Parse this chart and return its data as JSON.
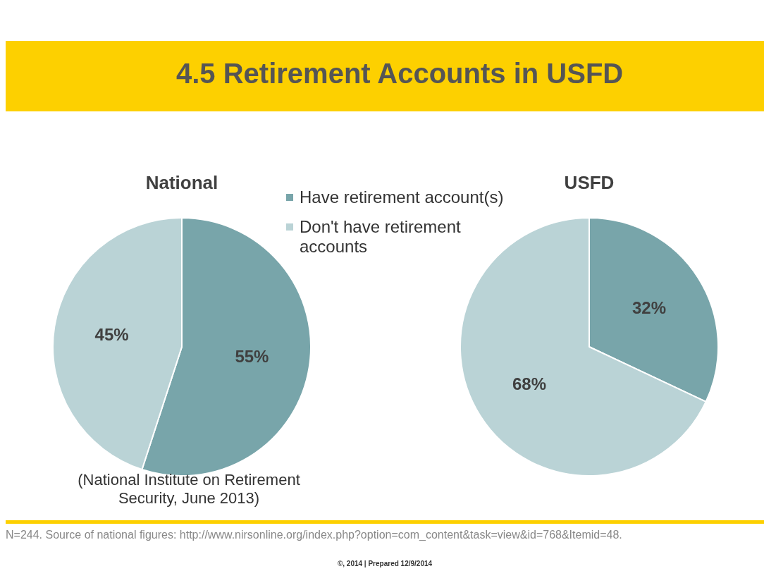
{
  "chart_data": [
    {
      "type": "pie",
      "title": "National",
      "categories": [
        "Have retirement account(s)",
        "Don't have retirement accounts"
      ],
      "values": [
        55,
        45
      ],
      "colors": [
        "#78a5aa",
        "#bad3d6"
      ],
      "value_labels": [
        "55%",
        "45%"
      ],
      "legend": "top right",
      "annotations": [
        "4.5 Retirement Accounts in USFD",
        "(National Institute on Retirement Security, June 2013)",
        "N=244. Source of national figures: http://www.nirsonline.org/index.php?option=com_content&task=view&id=768&Itemid=48.",
        "©, 2014 | Prepared 12/9/2014"
      ]
    },
    {
      "type": "pie",
      "title": "USFD",
      "categories": [
        null,
        null
      ],
      "values": [
        32,
        68
      ],
      "colors": [
        "#78a5aa",
        "#bad3d6"
      ],
      "value_labels": [
        "32%",
        "68%"
      ]
    }
  ]
}
